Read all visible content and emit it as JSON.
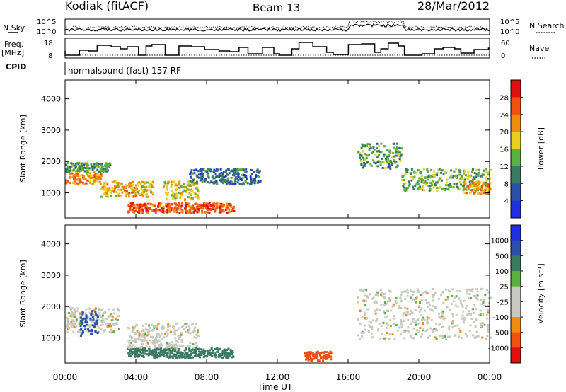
{
  "header": {
    "radar": "Kodiak (fitACF)",
    "beam": "Beam 13",
    "date": "28/Mar/2012"
  },
  "left_labels": {
    "nsky": "N.Sky",
    "freq": "Freq.",
    "mhz": "[MHz]",
    "cpid": "CPID"
  },
  "right_labels": {
    "nsearch": "N.Search",
    "nave": "Nave"
  },
  "cpid_text": "normalsound (fast) 157 RF",
  "noise_axis": {
    "left_ticks": [
      "10^5",
      "10^0"
    ],
    "right_ticks": [
      "10^5",
      "10^0"
    ]
  },
  "freq_axis": {
    "left_ticks": [
      "18",
      "8"
    ],
    "right_ticks": [
      "60",
      "0"
    ]
  },
  "colors": {
    "power_scale": [
      "#2030e0",
      "#2a50a8",
      "#3a7a60",
      "#5ab040",
      "#e8d020",
      "#f08a10",
      "#f05010",
      "#e01010"
    ],
    "velocity_scale": [
      "#e01010",
      "#f05010",
      "#f08a10",
      "#c8c8c0",
      "#c8c8c0",
      "#5ab040",
      "#3a7a60",
      "#2a50a8",
      "#2030e0"
    ]
  },
  "chart_data": [
    {
      "type": "heatmap",
      "name": "power",
      "ylabel": "Slant Range [km]",
      "y_ticks": [
        "1000",
        "2000",
        "3000",
        "4000"
      ],
      "ylim": [
        200,
        4600
      ],
      "colorbar_label": "Power [dB]",
      "colorbar_ticks": [
        "4",
        "8",
        "12",
        "16",
        "20",
        "24",
        "28"
      ],
      "clim": [
        0,
        32
      ],
      "bands": [
        {
          "t0": 0.0,
          "t1": 2.0,
          "r0": 1300,
          "r1": 1700,
          "level": 22
        },
        {
          "t0": 0.0,
          "t1": 2.5,
          "r0": 1700,
          "r1": 2000,
          "level": 12
        },
        {
          "t0": 2.0,
          "t1": 5.0,
          "r0": 900,
          "r1": 1400,
          "level": 20
        },
        {
          "t0": 3.5,
          "t1": 9.5,
          "r0": 400,
          "r1": 700,
          "level": 26
        },
        {
          "t0": 5.5,
          "t1": 7.5,
          "r0": 800,
          "r1": 1400,
          "level": 18
        },
        {
          "t0": 7.0,
          "t1": 11.0,
          "r0": 1300,
          "r1": 1800,
          "level": 8
        },
        {
          "t0": 16.5,
          "t1": 19.0,
          "r0": 1800,
          "r1": 2600,
          "level": 12
        },
        {
          "t0": 19.0,
          "t1": 24.0,
          "r0": 1100,
          "r1": 1800,
          "level": 14
        },
        {
          "t0": 22.5,
          "t1": 24.0,
          "r0": 1000,
          "r1": 1400,
          "level": 22
        }
      ]
    },
    {
      "type": "heatmap",
      "name": "velocity",
      "xlabel": "Time UT",
      "x_ticks": [
        "00:00",
        "04:00",
        "08:00",
        "12:00",
        "16:00",
        "20:00",
        "00:00"
      ],
      "xlim": [
        0,
        24
      ],
      "ylabel": "Slant Range [km]",
      "y_ticks": [
        "1000",
        "2000",
        "3000",
        "4000"
      ],
      "ylim": [
        200,
        4600
      ],
      "colorbar_label": "Velocity [m s⁻¹]",
      "colorbar_ticks": [
        "1000",
        "500",
        "100",
        "25",
        "-25",
        "-100",
        "-500",
        "-1000"
      ],
      "bands": [
        {
          "t0": 0.0,
          "t1": 3.0,
          "r0": 1200,
          "r1": 2000,
          "velocity": 0
        },
        {
          "t0": 0.8,
          "t1": 1.8,
          "r0": 1100,
          "r1": 1900,
          "velocity": 600
        },
        {
          "t0": 3.5,
          "t1": 9.5,
          "r0": 400,
          "r1": 700,
          "velocity": 150
        },
        {
          "t0": 3.5,
          "t1": 7.5,
          "r0": 700,
          "r1": 1500,
          "velocity": 0
        },
        {
          "t0": 13.5,
          "t1": 15.0,
          "r0": 300,
          "r1": 600,
          "velocity": -150
        },
        {
          "t0": 16.5,
          "t1": 24.0,
          "r0": 1000,
          "r1": 2600,
          "velocity": 0
        }
      ]
    }
  ]
}
